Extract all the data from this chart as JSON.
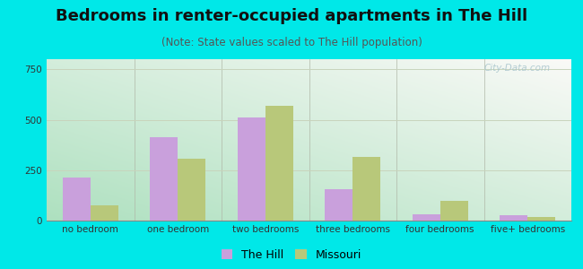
{
  "title": "Bedrooms in renter-occupied apartments in The Hill",
  "subtitle": "(Note: State values scaled to The Hill population)",
  "categories": [
    "no bedroom",
    "one bedroom",
    "two bedrooms",
    "three bedrooms",
    "four bedrooms",
    "five+ bedrooms"
  ],
  "the_hill": [
    215,
    415,
    510,
    155,
    30,
    25
  ],
  "missouri": [
    75,
    305,
    570,
    315,
    100,
    18
  ],
  "hill_color": "#c9a0dc",
  "missouri_color": "#b8c87a",
  "bg_outer": "#00e8e8",
  "ylim": [
    0,
    800
  ],
  "yticks": [
    0,
    250,
    500,
    750
  ],
  "bar_width": 0.32,
  "title_fontsize": 13,
  "subtitle_fontsize": 8.5,
  "tick_fontsize": 7.5,
  "legend_fontsize": 9,
  "watermark_text": "City-Data.com",
  "watermark_color": "#a8c4cc",
  "grid_color": "#c8d4bc",
  "grad_color_bottom_left": "#aee0c0",
  "grad_color_top_right": "#f0f6f0"
}
